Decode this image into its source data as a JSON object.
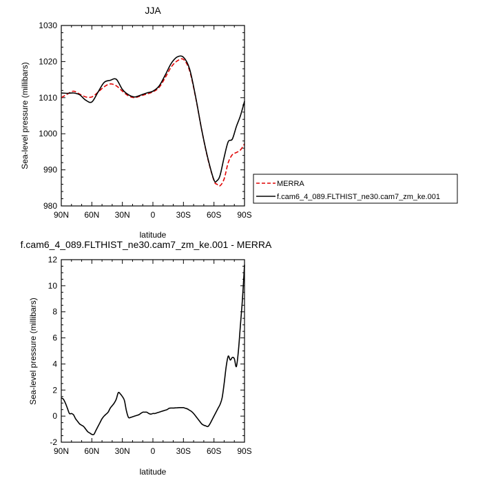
{
  "chart_data": [
    {
      "type": "line",
      "title": "JJA",
      "xlabel": "latitude",
      "ylabel": "Sea-level pressure (millibars)",
      "xlim": [
        90,
        -90
      ],
      "ylim": [
        980,
        1030
      ],
      "x_ticks": [
        {
          "value": 90,
          "label": "90N"
        },
        {
          "value": 60,
          "label": "60N"
        },
        {
          "value": 30,
          "label": "30N"
        },
        {
          "value": 0,
          "label": "0"
        },
        {
          "value": -30,
          "label": "30S"
        },
        {
          "value": -60,
          "label": "60S"
        },
        {
          "value": -90,
          "label": "90S"
        }
      ],
      "y_ticks": [
        980,
        990,
        1000,
        1010,
        1020,
        1030
      ],
      "legend": "right",
      "series": [
        {
          "name": "MERRA",
          "color": "#e00000",
          "dash": "dashed",
          "x": [
            90,
            84,
            78,
            72,
            66,
            60,
            54,
            48,
            42,
            36,
            30,
            24,
            18,
            12,
            6,
            0,
            -6,
            -12,
            -18,
            -24,
            -30,
            -36,
            -42,
            -48,
            -54,
            -60,
            -63,
            -66,
            -70,
            -74,
            -78,
            -82,
            -86,
            -90
          ],
          "y": [
            1010.0,
            1011.0,
            1011.8,
            1011.0,
            1010.2,
            1010.2,
            1011.5,
            1013.0,
            1013.8,
            1013.3,
            1011.8,
            1010.5,
            1010.0,
            1010.5,
            1011.0,
            1011.6,
            1012.8,
            1015.5,
            1018.5,
            1020.2,
            1020.6,
            1017.5,
            1010.0,
            1001.0,
            993.0,
            987.0,
            986.0,
            985.6,
            987.5,
            992.0,
            994.2,
            994.8,
            995.5,
            997.2
          ]
        },
        {
          "name": "f.cam6_4_089.FLTHIST_ne30.cam7_zm_ke.001",
          "color": "#000000",
          "dash": "solid",
          "x": [
            90,
            84,
            78,
            72,
            66,
            60,
            54,
            48,
            42,
            36,
            30,
            24,
            18,
            12,
            6,
            0,
            -6,
            -12,
            -18,
            -24,
            -30,
            -36,
            -42,
            -48,
            -54,
            -60,
            -63,
            -66,
            -70,
            -74,
            -78,
            -82,
            -86,
            -90
          ],
          "y": [
            1011.3,
            1011.2,
            1011.3,
            1010.8,
            1009.3,
            1008.8,
            1011.5,
            1014.2,
            1014.8,
            1015.1,
            1012.3,
            1010.8,
            1010.2,
            1010.7,
            1011.3,
            1011.8,
            1013.2,
            1016.2,
            1019.5,
            1021.3,
            1021.2,
            1018.0,
            1010.2,
            1001.0,
            993.2,
            987.2,
            987.0,
            988.5,
            993.5,
            997.8,
            998.5,
            1002.0,
            1005.0,
            1009.0
          ]
        }
      ]
    },
    {
      "type": "line",
      "title": "f.cam6_4_089.FLTHIST_ne30.cam7_zm_ke.001 - MERRA",
      "xlabel": "latitude",
      "ylabel": "Sea-level pressure (millibars)",
      "xlim": [
        90,
        -90
      ],
      "ylim": [
        -2,
        12
      ],
      "x_ticks": [
        {
          "value": 90,
          "label": "90N"
        },
        {
          "value": 60,
          "label": "60N"
        },
        {
          "value": 30,
          "label": "30N"
        },
        {
          "value": 0,
          "label": "0"
        },
        {
          "value": -30,
          "label": "30S"
        },
        {
          "value": -60,
          "label": "60S"
        },
        {
          "value": -90,
          "label": "90S"
        }
      ],
      "y_ticks": [
        -2,
        0,
        2,
        4,
        6,
        8,
        10,
        12
      ],
      "series": [
        {
          "color": "#000000",
          "dash": "solid",
          "x": [
            90,
            88,
            86,
            84,
            82,
            80,
            78,
            76,
            74,
            72,
            70,
            68,
            66,
            64,
            62,
            60,
            58,
            56,
            54,
            52,
            50,
            48,
            46,
            44,
            42,
            40,
            38,
            36,
            34,
            32,
            30,
            28,
            26,
            24,
            22,
            20,
            18,
            16,
            14,
            12,
            10,
            8,
            6,
            4,
            2,
            0,
            -2,
            -4,
            -6,
            -8,
            -10,
            -12,
            -14,
            -16,
            -18,
            -20,
            -22,
            -24,
            -26,
            -28,
            -30,
            -32,
            -34,
            -36,
            -38,
            -40,
            -42,
            -44,
            -46,
            -48,
            -50,
            -52,
            -54,
            -56,
            -58,
            -60,
            -62,
            -64,
            -66,
            -68,
            -70,
            -72,
            -74,
            -76,
            -78,
            -80,
            -82,
            -84,
            -86,
            -88,
            -90
          ],
          "y": [
            1.4,
            1.3,
            1.0,
            0.6,
            0.2,
            0.2,
            0.1,
            -0.2,
            -0.4,
            -0.6,
            -0.7,
            -0.8,
            -1.0,
            -1.2,
            -1.3,
            -1.4,
            -1.4,
            -1.1,
            -0.8,
            -0.5,
            -0.2,
            0.0,
            0.15,
            0.3,
            0.6,
            0.8,
            1.0,
            1.3,
            1.8,
            1.7,
            1.5,
            1.2,
            0.4,
            -0.1,
            -0.1,
            -0.05,
            0.0,
            0.05,
            0.1,
            0.2,
            0.3,
            0.3,
            0.3,
            0.2,
            0.15,
            0.2,
            0.2,
            0.25,
            0.3,
            0.35,
            0.4,
            0.45,
            0.5,
            0.6,
            0.62,
            0.62,
            0.63,
            0.64,
            0.65,
            0.65,
            0.65,
            0.6,
            0.55,
            0.45,
            0.35,
            0.2,
            0.0,
            -0.2,
            -0.4,
            -0.6,
            -0.7,
            -0.75,
            -0.8,
            -0.6,
            -0.3,
            0.0,
            0.3,
            0.6,
            0.9,
            1.4,
            2.5,
            3.8,
            4.6,
            4.3,
            4.5,
            4.4,
            3.8,
            5.0,
            7.0,
            9.0,
            11.6
          ]
        }
      ]
    }
  ]
}
